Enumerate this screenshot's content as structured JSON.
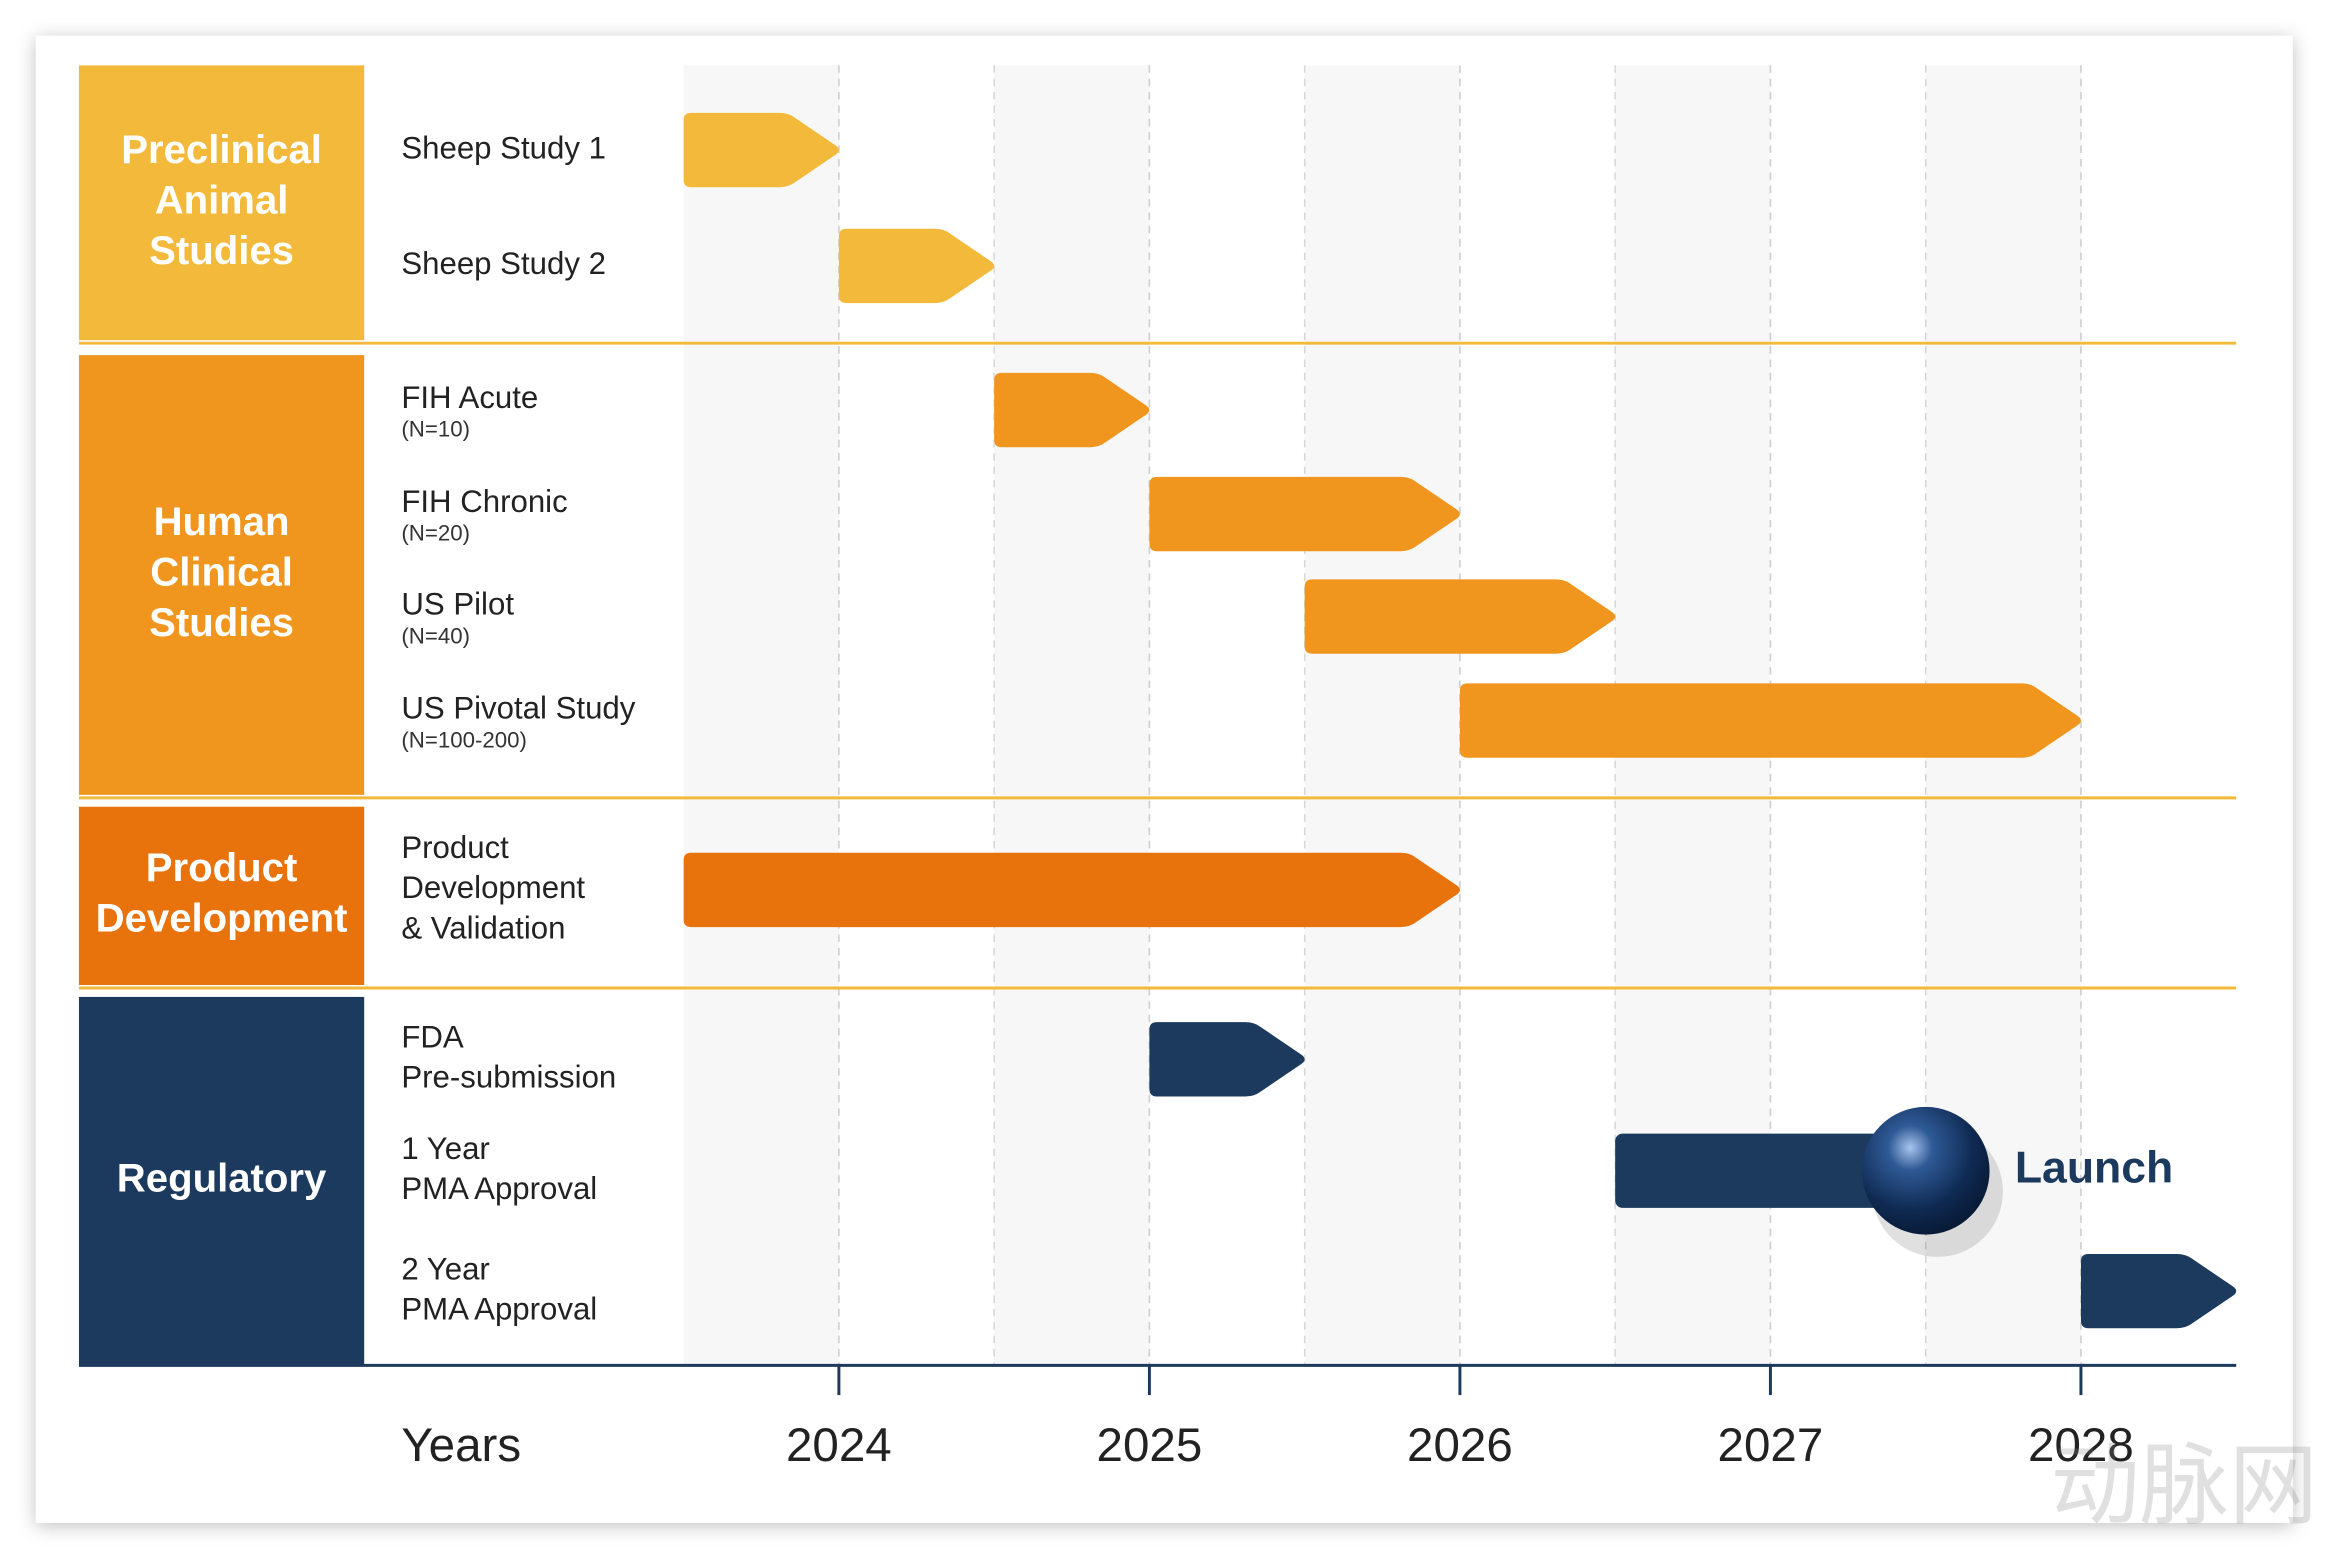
{
  "chart_data": {
    "type": "gantt",
    "x_label": "Years",
    "xlim": [
      2023.5,
      2028.5
    ],
    "xticks": [
      2024,
      2025,
      2026,
      2027,
      2028
    ],
    "watermark": "动脉网",
    "groups": [
      {
        "name": [
          "Preclinical",
          "Animal",
          "Studies"
        ],
        "color": "#f3b93a",
        "tasks": [
          {
            "label": [
              "Sheep Study 1"
            ],
            "start": 2023.5,
            "end": 2024
          },
          {
            "label": [
              "Sheep Study 2"
            ],
            "start": 2024,
            "end": 2024.5
          }
        ]
      },
      {
        "name": [
          "Human",
          "Clinical",
          "Studies"
        ],
        "color": "#f0961f",
        "tasks": [
          {
            "label": [
              "FIH Acute"
            ],
            "note": "(N=10)",
            "start": 2024.5,
            "end": 2025
          },
          {
            "label": [
              "FIH Chronic"
            ],
            "note": "(N=20)",
            "start": 2025,
            "end": 2026
          },
          {
            "label": [
              "US Pilot"
            ],
            "note": "(N=40)",
            "start": 2025.5,
            "end": 2026.5
          },
          {
            "label": [
              "US Pivotal Study"
            ],
            "note": "(N=100-200)",
            "start": 2026,
            "end": 2028
          }
        ]
      },
      {
        "name": [
          "Product",
          "Development"
        ],
        "color": "#e8720c",
        "tasks": [
          {
            "label": [
              "Product",
              "Development",
              "& Validation"
            ],
            "start": 2023.5,
            "end": 2026
          }
        ]
      },
      {
        "name": [
          "Regulatory"
        ],
        "color": "#1b3a5e",
        "tasks": [
          {
            "label": [
              "FDA",
              "Pre-submission"
            ],
            "start": 2025,
            "end": 2025.5
          },
          {
            "label": [
              "1 Year",
              "PMA Approval"
            ],
            "start": 2026.5,
            "end": 2027.5,
            "annotation": "Launch"
          },
          {
            "label": [
              "2 Year",
              "PMA Approval"
            ],
            "start": 2028,
            "end": 2028.5
          }
        ]
      }
    ]
  }
}
